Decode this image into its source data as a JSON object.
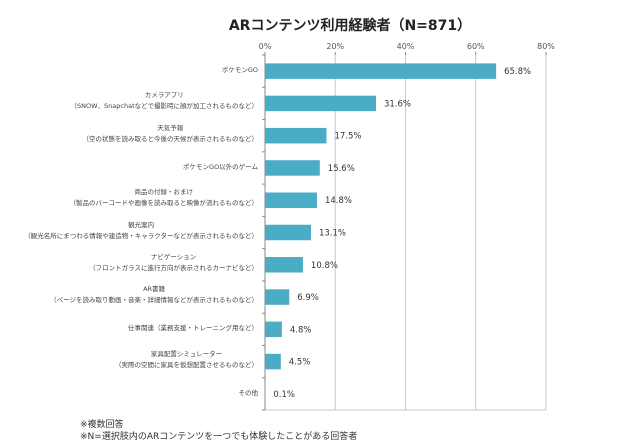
{
  "chart_data": {
    "type": "bar",
    "orientation": "horizontal",
    "title": "ARコンテンツ利用経験者（N=871）",
    "xlabel": "",
    "ylabel": "",
    "xlim": [
      0,
      80
    ],
    "xticks": [
      "0%",
      "20%",
      "40%",
      "60%",
      "80%"
    ],
    "xtick_values": [
      0,
      20,
      40,
      60,
      80
    ],
    "grid": true,
    "legend": "none",
    "categories": [
      {
        "label": "ポケモンGO",
        "sub": ""
      },
      {
        "label": "カメラアプリ",
        "sub": "（SNOW、Snapchatなどで撮影時に顔が加工されるものなど）"
      },
      {
        "label": "天気予報",
        "sub": "（空の状態を読み取ると今後の天候が表示されるものなど）"
      },
      {
        "label": "ポケモンGO以外のゲーム",
        "sub": ""
      },
      {
        "label": "商品の付録・おまけ",
        "sub": "（製品のバーコードや画像を読み取ると映像が流れるものなど）"
      },
      {
        "label": "観光案内",
        "sub": "（観光名所にまつわる情報や建造物・キャラクターなどが表示されるものなど）"
      },
      {
        "label": "ナビゲーション",
        "sub": "（フロントガラスに進行方向が表示されるカーナビなど）"
      },
      {
        "label": "AR書籍",
        "sub": "（ページを読み取り動画・音楽・詳細情報などが表示されるものなど）"
      },
      {
        "label": "仕事関連（業務支援・トレーニング用など）",
        "sub": ""
      },
      {
        "label": "家具配置シミュレーター",
        "sub": "（実際の空間に家具を仮想配置させるものなど）"
      },
      {
        "label": "その他",
        "sub": ""
      }
    ],
    "values": [
      65.8,
      31.6,
      17.5,
      15.6,
      14.8,
      13.1,
      10.8,
      6.9,
      4.8,
      4.5,
      0.1
    ],
    "data_labels": [
      "65.8%",
      "31.6%",
      "17.5%",
      "15.6%",
      "14.8%",
      "13.1%",
      "10.8%",
      "6.9%",
      "4.8%",
      "4.5%",
      "0.1%"
    ],
    "colors": {
      "bar": "#4bacc6",
      "grid": "#c8c8c8",
      "axis": "#888888"
    }
  },
  "notes": [
    "※複数回答",
    "※N=選択肢内のARコンテンツを一つでも体験したことがある回答者"
  ]
}
